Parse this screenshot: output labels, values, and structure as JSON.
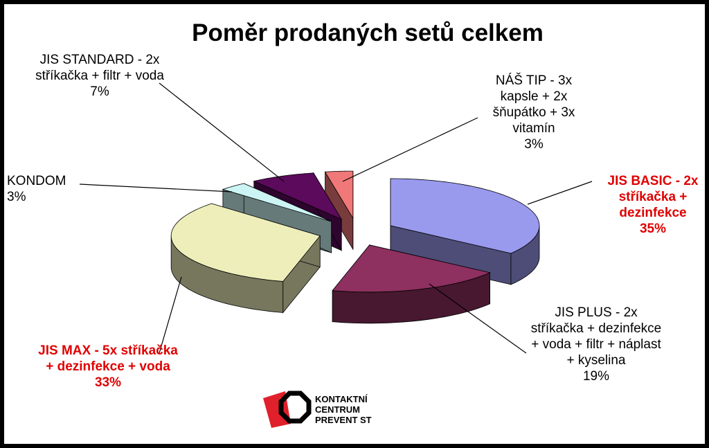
{
  "chart_data": {
    "type": "pie3d",
    "title": "Poměr prodaných setů celkem",
    "categories": [
      "JIS BASIC - 2x stříkačka + dezinfekce",
      "JIS PLUS - 2x stříkačka + dezinfekce + voda + filtr + náplast + kyselina",
      "JIS MAX - 5x stříkačka + dezinfekce + voda",
      "KONDOM",
      "JIS STANDARD - 2x stříkačka + filtr + voda",
      "NÁŠ TIP - 3x kapsle + 2x šňupátko + 3x vitamín"
    ],
    "values": [
      35,
      19,
      33,
      3,
      7,
      3
    ],
    "value_labels": [
      "35%",
      "19%",
      "33%",
      "3%",
      "7%",
      "3%"
    ],
    "colors": [
      "#9999ee",
      "#8e3060",
      "#eeeebb",
      "#ccf4f4",
      "#5c0a5c",
      "#f07878"
    ],
    "label_colors": [
      "#e00000",
      "#000000",
      "#e00000",
      "#000000",
      "#000000",
      "#000000"
    ],
    "label_bold": [
      true,
      false,
      true,
      false,
      false,
      false
    ]
  },
  "logo": {
    "lines": [
      "KONTAKTNÍ",
      "CENTRUM",
      "PREVENT ST"
    ]
  }
}
